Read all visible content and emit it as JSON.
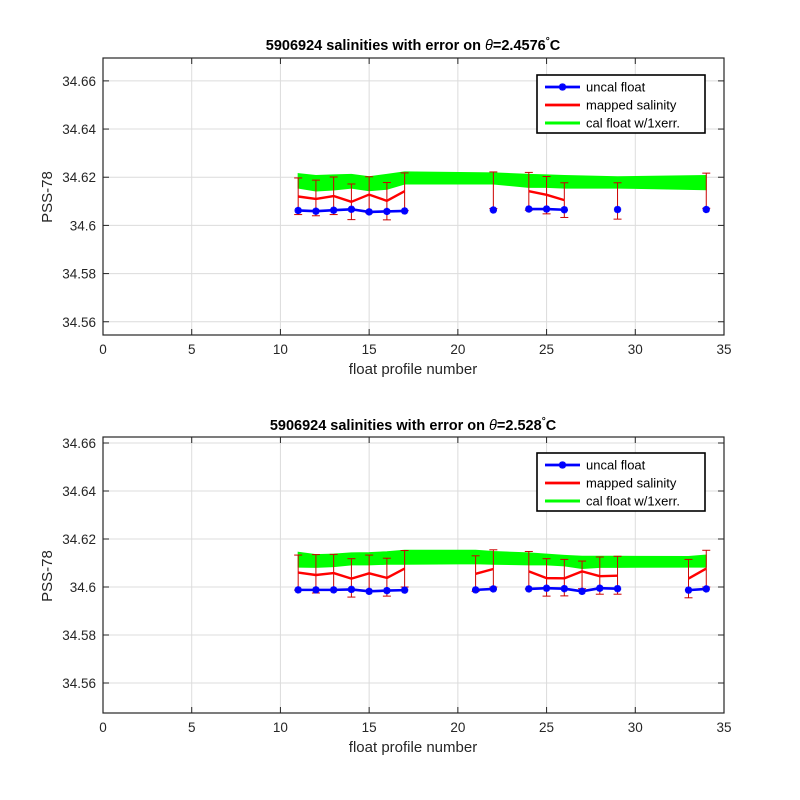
{
  "chart_data": [
    {
      "type": "line",
      "title_prefix": "5906924 salinities with error on ",
      "title_symbol": "θ",
      "title_value": "=2.4576",
      "title_degree": "°",
      "title_unit": "C",
      "xlabel": "float profile number",
      "ylabel": "PSS-78",
      "xlim": [
        0,
        35
      ],
      "ylim": [
        34.5545,
        34.6695
      ],
      "xticks": [
        0,
        5,
        10,
        15,
        20,
        25,
        30,
        35
      ],
      "xtick_labels": [
        "0",
        "5",
        "10",
        "15",
        "20",
        "25",
        "30",
        "35"
      ],
      "yticks": [
        34.56,
        34.58,
        34.6,
        34.62,
        34.64,
        34.66
      ],
      "ytick_labels": [
        "34.56",
        "34.58",
        "34.6",
        "34.62",
        "34.64",
        "34.66"
      ],
      "grid": true,
      "legend_position": "top-right",
      "legend": [
        "uncal float",
        "mapped salinity",
        "cal float w/1xerr."
      ],
      "colors": {
        "uncal": "#0000ff",
        "mapped": "#ff0000",
        "cal": "#00ff00",
        "error": "#cc0000"
      },
      "series": [
        {
          "name": "uncal float",
          "segments": [
            {
              "x": [
                11,
                12,
                13,
                14,
                15,
                16,
                17
              ],
              "y": [
                34.6062,
                34.6059,
                34.6063,
                34.6067,
                34.6056,
                34.6058,
                34.606
              ]
            },
            {
              "x": [
                22
              ],
              "y": [
                34.6064
              ]
            },
            {
              "x": [
                24,
                25,
                26
              ],
              "y": [
                34.6068,
                34.6068,
                34.6065
              ]
            },
            {
              "x": [
                29
              ],
              "y": [
                34.6066
              ]
            },
            {
              "x": [
                34
              ],
              "y": [
                34.6066
              ]
            }
          ]
        },
        {
          "name": "mapped salinity",
          "segments": [
            {
              "x": [
                11,
                12,
                13,
                14,
                15,
                16,
                17
              ],
              "y": [
                34.612,
                34.611,
                34.6122,
                34.6098,
                34.6128,
                34.6102,
                34.6142
              ]
            },
            {
              "x": [
                22
              ],
              "y": [
                34.6147
              ]
            },
            {
              "x": [
                24,
                25,
                26
              ],
              "y": [
                34.6142,
                34.6127,
                34.6105
              ]
            },
            {
              "x": [
                29
              ],
              "y": [
                34.6105
              ]
            },
            {
              "x": [
                34
              ],
              "y": [
                34.6145
              ]
            }
          ],
          "error_bars": [
            {
              "x": 11,
              "low": 34.6045,
              "high": 34.6197
            },
            {
              "x": 12,
              "low": 34.604,
              "high": 34.6188
            },
            {
              "x": 13,
              "low": 34.6045,
              "high": 34.6201
            },
            {
              "x": 14,
              "low": 34.6024,
              "high": 34.6172
            },
            {
              "x": 15,
              "low": 34.6052,
              "high": 34.6202
            },
            {
              "x": 16,
              "low": 34.6023,
              "high": 34.6178
            },
            {
              "x": 17,
              "low": 34.6062,
              "high": 34.6218
            },
            {
              "x": 22,
              "low": 34.607,
              "high": 34.6222
            },
            {
              "x": 24,
              "low": 34.6063,
              "high": 34.622
            },
            {
              "x": 25,
              "low": 34.6048,
              "high": 34.6203
            },
            {
              "x": 26,
              "low": 34.6033,
              "high": 34.6177
            },
            {
              "x": 29,
              "low": 34.6026,
              "high": 34.6177
            },
            {
              "x": 34,
              "low": 34.6071,
              "high": 34.6217
            }
          ]
        },
        {
          "name": "cal float w/1xerr.",
          "band": {
            "x": [
              11,
              12,
              13,
              14,
              15,
              16,
              17,
              22,
              24,
              25,
              26,
              29,
              34
            ],
            "low": [
              34.6155,
              34.6143,
              34.6147,
              34.6155,
              34.6144,
              34.615,
              34.6172,
              34.6172,
              34.6158,
              34.6158,
              34.6155,
              34.6155,
              34.6148
            ],
            "high": [
              34.6215,
              34.6207,
              34.621,
              34.6212,
              34.6202,
              34.6212,
              34.6222,
              34.6218,
              34.6212,
              34.621,
              34.6207,
              34.6202,
              34.6207
            ]
          }
        }
      ]
    },
    {
      "type": "line",
      "title_prefix": "5906924 salinities with error on ",
      "title_symbol": "θ",
      "title_value": "=2.528",
      "title_degree": "°",
      "title_unit": "C",
      "xlabel": "float profile number",
      "ylabel": "PSS-78",
      "xlim": [
        0,
        35
      ],
      "ylim": [
        34.5475,
        34.6625
      ],
      "xticks": [
        0,
        5,
        10,
        15,
        20,
        25,
        30,
        35
      ],
      "xtick_labels": [
        "0",
        "5",
        "10",
        "15",
        "20",
        "25",
        "30",
        "35"
      ],
      "yticks": [
        34.56,
        34.58,
        34.6,
        34.62,
        34.64,
        34.66
      ],
      "ytick_labels": [
        "34.56",
        "34.58",
        "34.6",
        "34.62",
        "34.64",
        "34.66"
      ],
      "grid": true,
      "legend_position": "top-right",
      "legend": [
        "uncal float",
        "mapped salinity",
        "cal float w/1xerr."
      ],
      "colors": {
        "uncal": "#0000ff",
        "mapped": "#ff0000",
        "cal": "#00ff00",
        "error": "#cc0000"
      },
      "series": [
        {
          "name": "uncal float",
          "segments": [
            {
              "x": [
                11,
                12,
                13,
                14,
                15,
                16,
                17
              ],
              "y": [
                34.5988,
                34.5988,
                34.5988,
                34.599,
                34.5982,
                34.5985,
                34.5987
              ]
            },
            {
              "x": [
                21,
                22
              ],
              "y": [
                34.5988,
                34.5992
              ]
            },
            {
              "x": [
                24,
                25,
                26,
                27,
                28,
                29
              ],
              "y": [
                34.5992,
                34.5995,
                34.5993,
                34.5982,
                34.5995,
                34.5993
              ]
            },
            {
              "x": [
                33,
                34
              ],
              "y": [
                34.5987,
                34.5992
              ]
            }
          ]
        },
        {
          "name": "mapped salinity",
          "segments": [
            {
              "x": [
                11,
                12,
                13,
                14,
                15,
                16,
                17
              ],
              "y": [
                34.606,
                34.605,
                34.6058,
                34.6035,
                34.6057,
                34.6038,
                34.6077
              ]
            },
            {
              "x": [
                21,
                22
              ],
              "y": [
                34.6055,
                34.6075
              ]
            },
            {
              "x": [
                24,
                25,
                26,
                27,
                28,
                29
              ],
              "y": [
                34.6065,
                34.6037,
                34.6036,
                34.6065,
                34.6045,
                34.6047
              ]
            },
            {
              "x": [
                33,
                34
              ],
              "y": [
                34.6035,
                34.6077
              ]
            }
          ],
          "error_bars": [
            {
              "x": 11,
              "low": 34.5987,
              "high": 34.6133
            },
            {
              "x": 12,
              "low": 34.5975,
              "high": 34.6135
            },
            {
              "x": 13,
              "low": 34.5985,
              "high": 34.6136
            },
            {
              "x": 14,
              "low": 34.5958,
              "high": 34.6118
            },
            {
              "x": 15,
              "low": 34.5985,
              "high": 34.6133
            },
            {
              "x": 16,
              "low": 34.5962,
              "high": 34.612
            },
            {
              "x": 17,
              "low": 34.6,
              "high": 34.6152
            },
            {
              "x": 21,
              "low": 34.5982,
              "high": 34.613
            },
            {
              "x": 22,
              "low": 34.6,
              "high": 34.6155
            },
            {
              "x": 24,
              "low": 34.5992,
              "high": 34.6148
            },
            {
              "x": 25,
              "low": 34.5962,
              "high": 34.6118
            },
            {
              "x": 26,
              "low": 34.5963,
              "high": 34.6115
            },
            {
              "x": 27,
              "low": 34.5993,
              "high": 34.6108
            },
            {
              "x": 28,
              "low": 34.597,
              "high": 34.6125
            },
            {
              "x": 29,
              "low": 34.597,
              "high": 34.6128
            },
            {
              "x": 33,
              "low": 34.5955,
              "high": 34.6115
            },
            {
              "x": 34,
              "low": 34.6,
              "high": 34.6153
            }
          ]
        },
        {
          "name": "cal float w/1xerr.",
          "band": {
            "x": [
              11,
              12,
              13,
              14,
              15,
              16,
              17,
              21,
              22,
              24,
              25,
              26,
              27,
              28,
              29,
              33,
              34
            ],
            "low": [
              34.6083,
              34.6082,
              34.6085,
              34.6092,
              34.6092,
              34.6095,
              34.6095,
              34.6097,
              34.6095,
              34.6092,
              34.6092,
              34.6088,
              34.6077,
              34.6082,
              34.6082,
              34.6083,
              34.6083
            ],
            "high": [
              34.6145,
              34.6135,
              34.6137,
              34.6142,
              34.6143,
              34.6147,
              34.6153,
              34.6153,
              34.6148,
              34.6142,
              34.6137,
              34.6132,
              34.6128,
              34.6128,
              34.6128,
              34.6127,
              34.6133
            ]
          }
        }
      ]
    }
  ]
}
